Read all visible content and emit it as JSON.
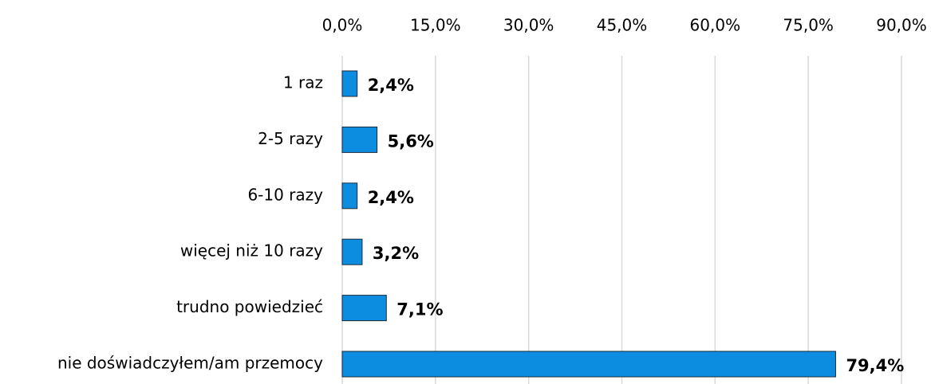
{
  "chart_data": {
    "type": "bar",
    "orientation": "horizontal",
    "categories": [
      "1 raz",
      "2-5 razy",
      "6-10 razy",
      "więcej niż 10 razy",
      "trudno powiedzieć",
      "nie doświadczyłem/am przemocy"
    ],
    "values": [
      2.4,
      5.6,
      2.4,
      3.2,
      7.1,
      79.4
    ],
    "value_labels": [
      "2,4%",
      "5,6%",
      "2,4%",
      "3,2%",
      "7,1%",
      "79,4%"
    ],
    "color": "#0c8de0",
    "xlim": [
      0,
      90
    ],
    "xticks": [
      {
        "value": 0,
        "label": "0,0%"
      },
      {
        "value": 15,
        "label": "15,0%"
      },
      {
        "value": 30,
        "label": "30,0%"
      },
      {
        "value": 45,
        "label": "45,0%"
      },
      {
        "value": 60,
        "label": "60,0%"
      },
      {
        "value": 75,
        "label": "75,0%"
      },
      {
        "value": 90,
        "label": "90,0%"
      }
    ],
    "grid": true
  }
}
